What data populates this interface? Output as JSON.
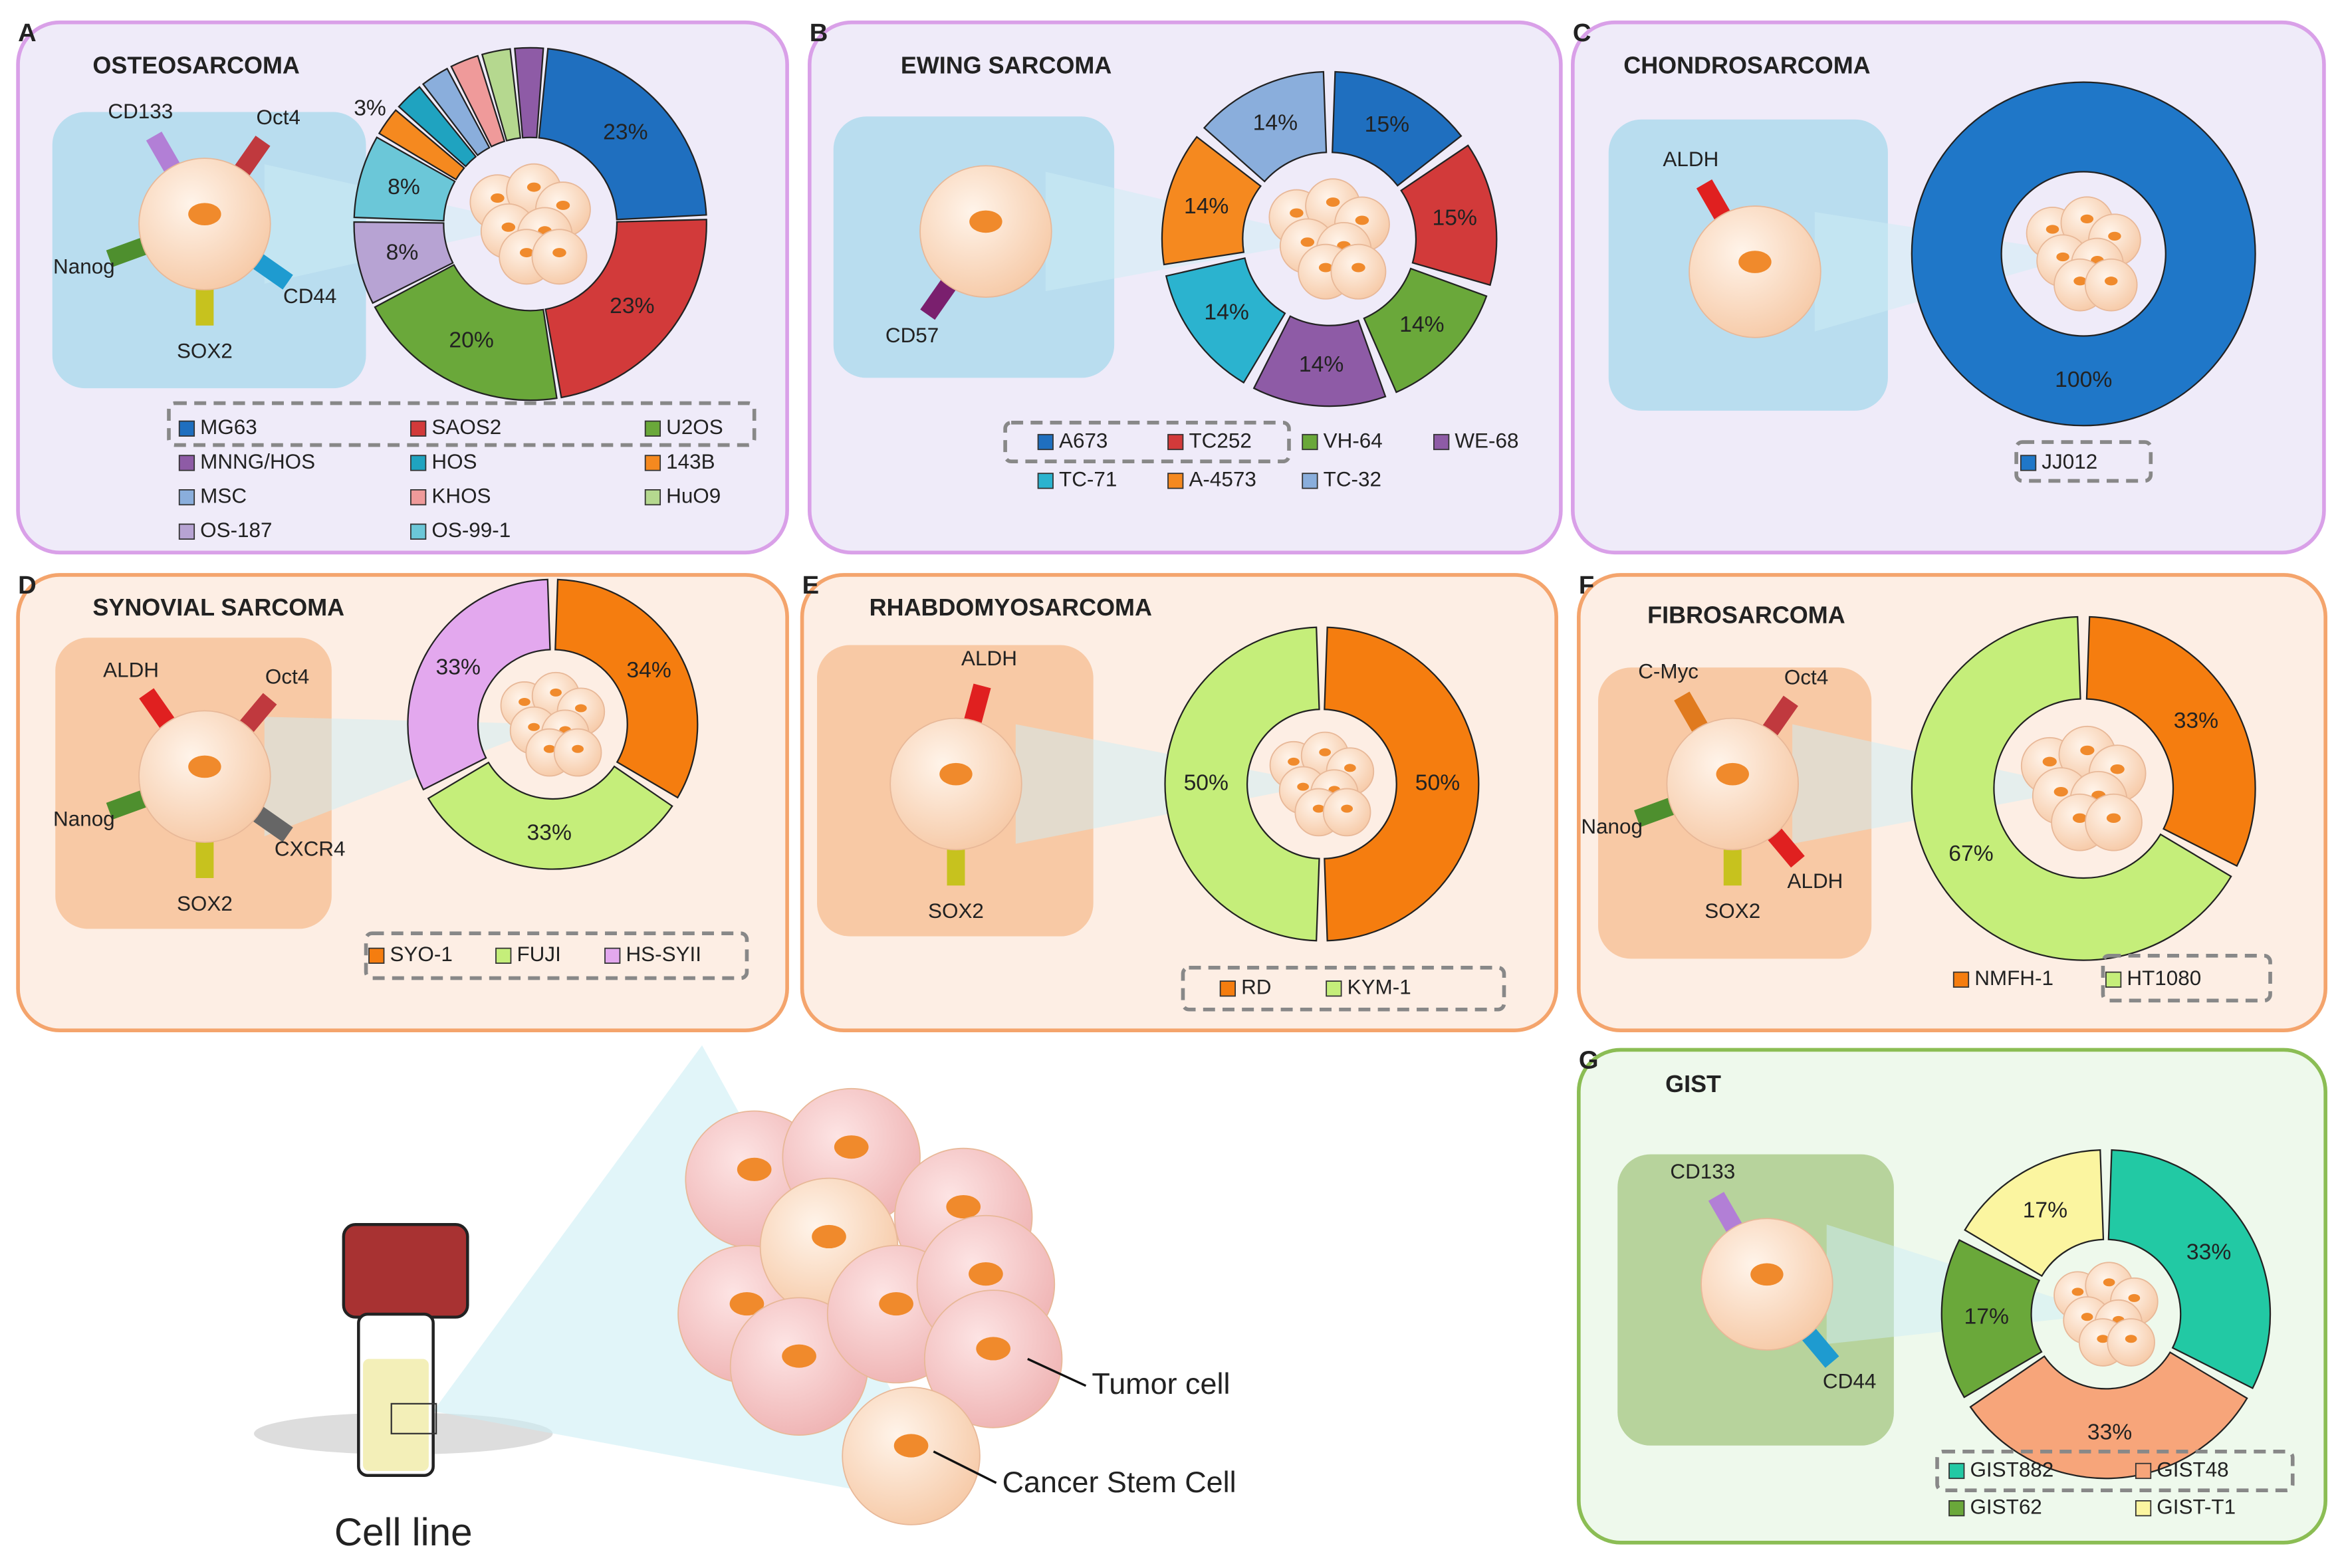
{
  "panels": [
    {
      "letter": "A",
      "title": "OSTEOSARCOMA",
      "markers": [
        {
          "name": "CD133",
          "color": "#b27fd6"
        },
        {
          "name": "Oct4",
          "color": "#c0393e"
        },
        {
          "name": "CD44",
          "color": "#1e9bd0"
        },
        {
          "name": "SOX2",
          "color": "#c7c21e"
        },
        {
          "name": "Nanog",
          "color": "#4e8f2e"
        }
      ],
      "segments": [
        {
          "name": "MG63",
          "value": 23,
          "label": "23%",
          "color": "#1f6fbf"
        },
        {
          "name": "SAOS2",
          "value": 23,
          "label": "23%",
          "color": "#d23a3a"
        },
        {
          "name": "U2OS",
          "value": 20,
          "label": "20%",
          "color": "#6aa83a"
        },
        {
          "name": "OS-187",
          "value": 8,
          "label": "8%",
          "color": "#b7a3d3"
        },
        {
          "name": "OS-99-1",
          "value": 8,
          "label": "8%",
          "color": "#6bc7d8"
        },
        {
          "name": "143B",
          "value": 3,
          "label": "3%",
          "color": "#f5891f"
        },
        {
          "name": "HOS",
          "value": 3,
          "color": "#1fa3c0"
        },
        {
          "name": "MSC",
          "value": 3,
          "color": "#8aaedc"
        },
        {
          "name": "KHOS",
          "value": 3,
          "color": "#ef9a9a"
        },
        {
          "name": "HuO9",
          "value": 3,
          "color": "#b5d88f"
        },
        {
          "name": "MNNG/HOS",
          "value": 3,
          "color": "#8e5ba6"
        }
      ]
    },
    {
      "letter": "B",
      "title": "EWING SARCOMA",
      "markers": [
        {
          "name": "CD57",
          "color": "#7a1f6e"
        }
      ],
      "segments": [
        {
          "name": "A673",
          "value": 15,
          "label": "15%",
          "color": "#1f6fbf"
        },
        {
          "name": "TC252",
          "value": 15,
          "label": "15%",
          "color": "#d23a3a"
        },
        {
          "name": "VH-64",
          "value": 14,
          "label": "14%",
          "color": "#6aa83a"
        },
        {
          "name": "WE-68",
          "value": 14,
          "label": "14%",
          "color": "#8e5ba6"
        },
        {
          "name": "TC-71",
          "value": 14,
          "label": "14%",
          "color": "#2bb3cf"
        },
        {
          "name": "A-4573",
          "value": 14,
          "label": "14%",
          "color": "#f5891f"
        },
        {
          "name": "TC-32",
          "value": 14,
          "label": "14%",
          "color": "#8aaedc"
        }
      ]
    },
    {
      "letter": "C",
      "title": "CHONDROSARCOMA",
      "markers": [
        {
          "name": "ALDH",
          "color": "#e02020"
        }
      ],
      "segments": [
        {
          "name": "JJ012",
          "value": 100,
          "label": "100%",
          "color": "#1f77c8"
        }
      ]
    },
    {
      "letter": "D",
      "title": "SYNOVIAL SARCOMA",
      "markers": [
        {
          "name": "ALDH",
          "color": "#e02020"
        },
        {
          "name": "Oct4",
          "color": "#c0393e"
        },
        {
          "name": "CXCR4",
          "color": "#666666"
        },
        {
          "name": "SOX2",
          "color": "#c7c21e"
        },
        {
          "name": "Nanog",
          "color": "#4e8f2e"
        }
      ],
      "segments": [
        {
          "name": "SYO-1",
          "value": 34,
          "label": "34%",
          "color": "#f57d0f"
        },
        {
          "name": "FUJI",
          "value": 33,
          "label": "33%",
          "color": "#c5ee7a"
        },
        {
          "name": "HS-SYII",
          "value": 33,
          "label": "33%",
          "color": "#e3a8ee"
        }
      ]
    },
    {
      "letter": "E",
      "title": "RHABDOMYOSARCOMA",
      "markers": [
        {
          "name": "ALDH",
          "color": "#e02020"
        },
        {
          "name": "SOX2",
          "color": "#c7c21e"
        }
      ],
      "segments": [
        {
          "name": "RD",
          "value": 50,
          "label": "50%",
          "color": "#f57d0f"
        },
        {
          "name": "KYM-1",
          "value": 50,
          "label": "50%",
          "color": "#c5ee7a"
        }
      ]
    },
    {
      "letter": "F",
      "title": "FIBROSARCOMA",
      "markers": [
        {
          "name": "C-Myc",
          "color": "#e07a1e"
        },
        {
          "name": "Oct4",
          "color": "#c0393e"
        },
        {
          "name": "ALDH",
          "color": "#e02020"
        },
        {
          "name": "SOX2",
          "color": "#c7c21e"
        },
        {
          "name": "Nanog",
          "color": "#4e8f2e"
        }
      ],
      "segments": [
        {
          "name": "NMFH-1",
          "value": 33,
          "label": "33%",
          "color": "#f57d0f"
        },
        {
          "name": "HT1080",
          "value": 67,
          "label": "67%",
          "color": "#c5ee7a"
        }
      ]
    },
    {
      "letter": "G",
      "title": "GIST",
      "markers": [
        {
          "name": "CD133",
          "color": "#b27fd6"
        },
        {
          "name": "CD44",
          "color": "#1e9bd0"
        }
      ],
      "segments": [
        {
          "name": "GIST882",
          "value": 33,
          "label": "33%",
          "color": "#22c9a4"
        },
        {
          "name": "GIST48",
          "value": 33,
          "label": "33%",
          "color": "#f7a57a"
        },
        {
          "name": "GIST62",
          "value": 17,
          "label": "17%",
          "color": "#6aa83a"
        },
        {
          "name": "GIST-T1",
          "value": 17,
          "label": "17%",
          "color": "#fbf5a0"
        }
      ]
    }
  ],
  "bottom": {
    "tumor_cell": "Tumor cell",
    "cancer_stem_cell": "Cancer Stem Cell",
    "cell_line": "Cell line"
  }
}
